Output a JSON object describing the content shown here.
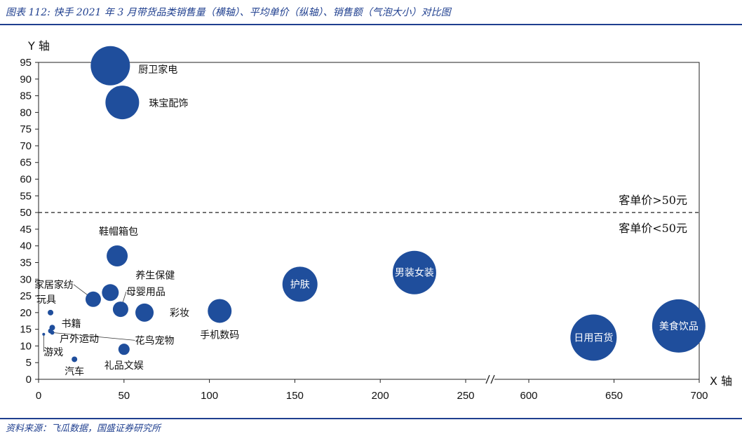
{
  "header": {
    "title": "图表 112: 快手 2021 年 3 月带货品类销售量（横轴）、平均单价（纵轴）、销售额（气泡大小）对比图"
  },
  "footer": {
    "source": "资料来源：飞瓜数据，国盛证券研究所"
  },
  "colors": {
    "accent": "#1f3f8f",
    "bubble": "#1f4e9c"
  },
  "chart_data": {
    "type": "scatter",
    "xlabel": "X 轴",
    "ylabel": "Y 轴",
    "ylim": [
      0,
      95
    ],
    "xlim": [
      0,
      700
    ],
    "x_axis_break": {
      "after": 250,
      "resumes_at": 600
    },
    "x_ticks": [
      "0",
      "50",
      "100",
      "150",
      "200",
      "250",
      "600",
      "650",
      "700"
    ],
    "y_ticks": [
      "0",
      "5",
      "10",
      "15",
      "20",
      "25",
      "30",
      "35",
      "40",
      "45",
      "50",
      "55",
      "60",
      "65",
      "70",
      "75",
      "80",
      "85",
      "90",
      "95"
    ],
    "threshold": {
      "y": 50,
      "label_above": "客单价>50元",
      "label_below": "客单价<50元"
    },
    "points": [
      {
        "name": "厨卫家电",
        "x": 42,
        "y": 94,
        "size": 28,
        "label": "outside"
      },
      {
        "name": "珠宝配饰",
        "x": 49,
        "y": 83,
        "size": 24,
        "label": "outside"
      },
      {
        "name": "鞋帽箱包",
        "x": 46,
        "y": 37,
        "size": 15,
        "label": "outside"
      },
      {
        "name": "养生保健",
        "x": 42,
        "y": 26,
        "size": 12,
        "label": "outside"
      },
      {
        "name": "家居家纺",
        "x": 32,
        "y": 24,
        "size": 11,
        "label": "outside"
      },
      {
        "name": "母婴用品",
        "x": 48,
        "y": 21,
        "size": 11,
        "label": "outside"
      },
      {
        "name": "彩妆",
        "x": 62,
        "y": 20,
        "size": 13,
        "label": "outside"
      },
      {
        "name": "玩具",
        "x": 7,
        "y": 20,
        "size": 4,
        "label": "outside"
      },
      {
        "name": "书籍",
        "x": 8,
        "y": 15.5,
        "size": 4,
        "label": "outside"
      },
      {
        "name": "户外运动",
        "x": 7,
        "y": 14.5,
        "size": 3.5,
        "label": "outside"
      },
      {
        "name": "花鸟宠物",
        "x": 8,
        "y": 14,
        "size": 3,
        "label": "outside"
      },
      {
        "name": "游戏",
        "x": 3,
        "y": 13.5,
        "size": 2,
        "label": "outside"
      },
      {
        "name": "礼品文娱",
        "x": 50,
        "y": 9,
        "size": 8,
        "label": "outside"
      },
      {
        "name": "汽车",
        "x": 21,
        "y": 6,
        "size": 4,
        "label": "outside"
      },
      {
        "name": "手机数码",
        "x": 106,
        "y": 20.5,
        "size": 17,
        "label": "outside"
      },
      {
        "name": "护肤",
        "x": 153,
        "y": 28.5,
        "size": 25,
        "label": "inside"
      },
      {
        "name": "男装女装",
        "x": 220,
        "y": 32,
        "size": 31,
        "label": "inside"
      },
      {
        "name": "日用百货",
        "x": 638,
        "y": 12.5,
        "size": 33,
        "label": "inside"
      },
      {
        "name": "美食饮品",
        "x": 688,
        "y": 16,
        "size": 38,
        "label": "inside"
      }
    ]
  }
}
